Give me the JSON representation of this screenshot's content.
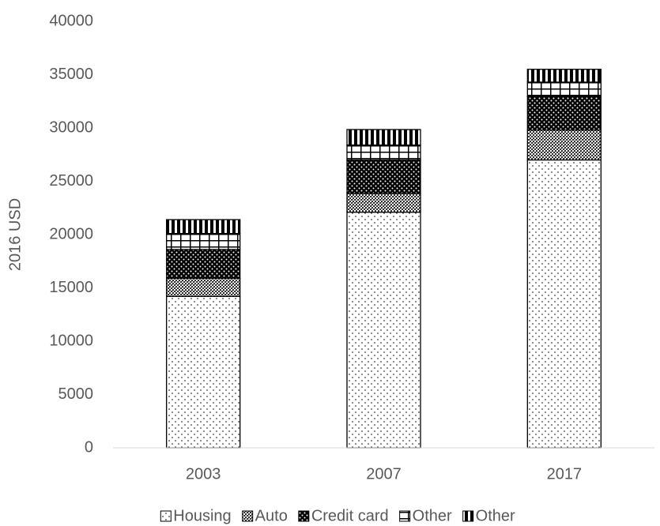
{
  "chart_data": {
    "type": "stacked_bar",
    "categories": [
      "2003",
      "2007",
      "2017"
    ],
    "y_label": "2016 USD",
    "ylim": [
      0,
      40000
    ],
    "yticks": [
      0,
      5000,
      10000,
      15000,
      20000,
      25000,
      30000,
      35000,
      40000
    ],
    "legend": "bottom",
    "series": [
      {
        "name": "Housing",
        "pattern": "dots",
        "values": [
          14200,
          22100,
          27000
        ]
      },
      {
        "name": "Auto",
        "pattern": "crosshatch",
        "values": [
          1700,
          1750,
          2800
        ]
      },
      {
        "name": "Credit card",
        "pattern": "dark-dots",
        "values": [
          2700,
          3150,
          3150
        ]
      },
      {
        "name": "Other",
        "pattern": "grid",
        "values": [
          1500,
          1400,
          1350
        ]
      },
      {
        "name": "Other",
        "pattern": "stripes",
        "values": [
          1300,
          1450,
          1200
        ]
      }
    ]
  }
}
